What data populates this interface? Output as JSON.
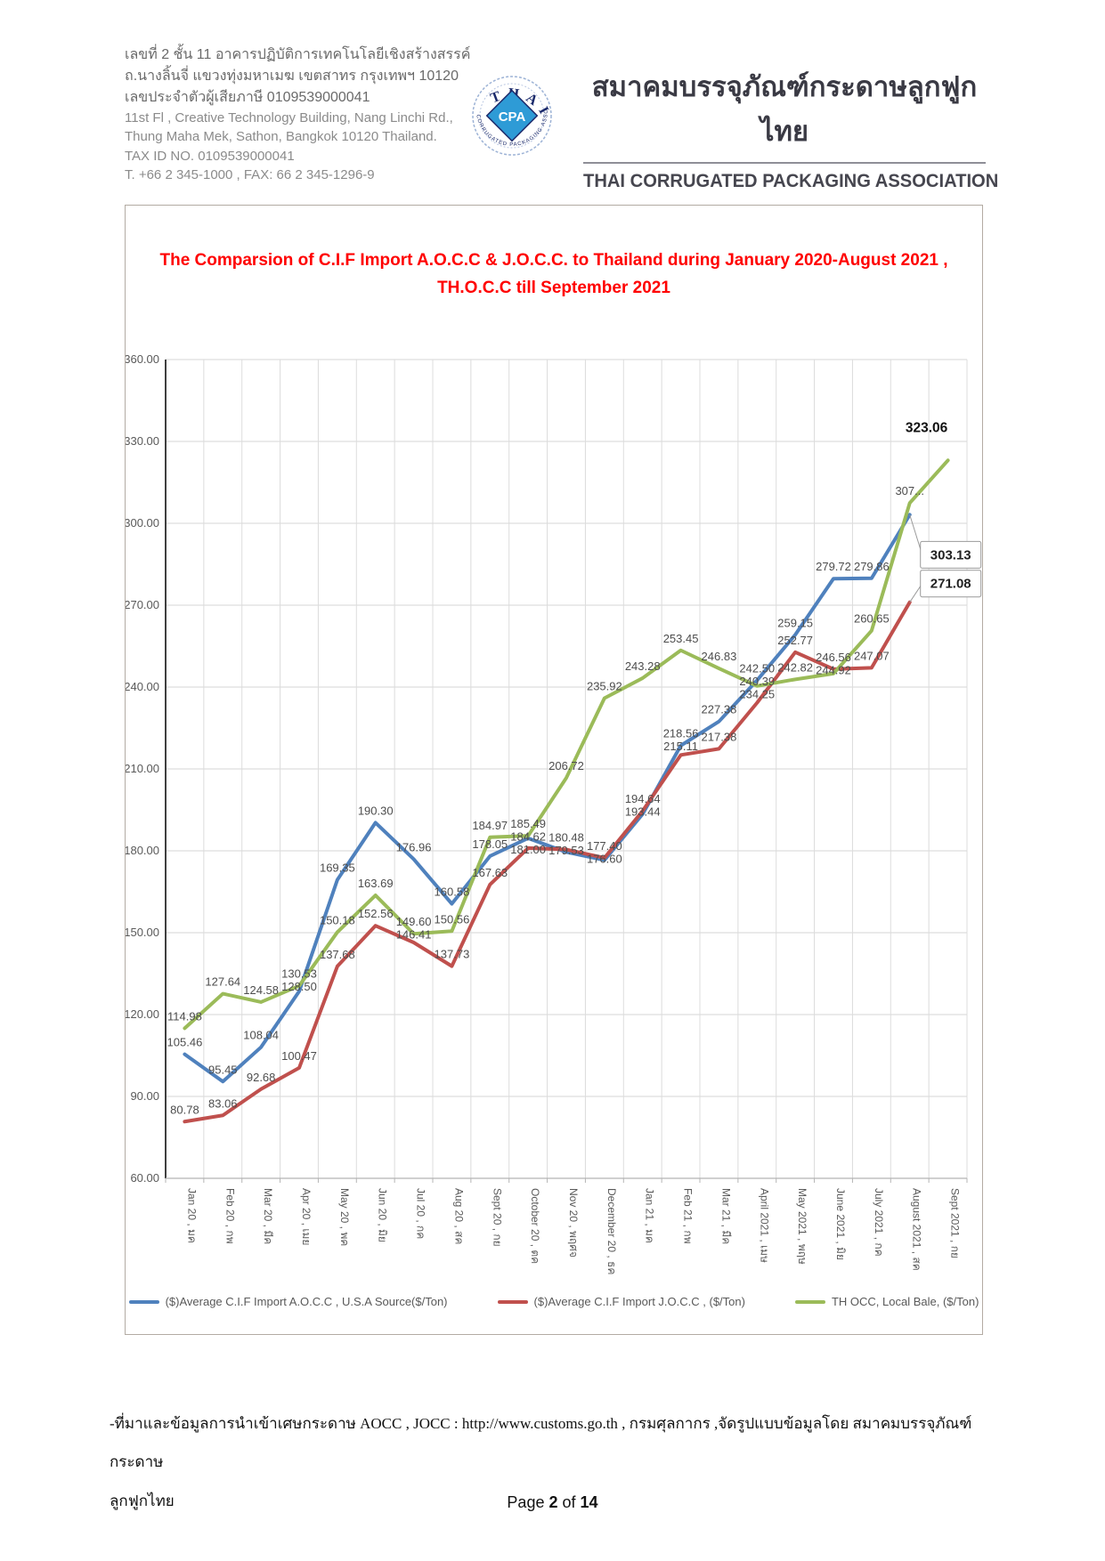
{
  "header": {
    "address_th": [
      "เลขที่ 2 ชั้น 11 อาคารปฏิบัติการเทคโนโลยีเชิงสร้างสรรค์",
      "ถ.นางลิ้นจี่ แขวงทุ่งมหาเมฆ เขตสาทร กรุงเทพฯ 10120",
      "เลขประจำตัวผู้เสียภาษี  0109539000041"
    ],
    "address_en": [
      "11st Fl , Creative Technology Building, Nang Linchi Rd.,",
      "Thung Maha Mek, Sathon, Bangkok 10120 Thailand.",
      "TAX ID NO. 0109539000041",
      "T. +66 2 345-1000 , FAX: 66 2 345-1296-9"
    ],
    "logo": {
      "arc_top": "THAI",
      "arc_bottom": "CORRUGATED PACKAGING ASSOCIATION",
      "center": "CPA"
    },
    "org_name_th": "สมาคมบรรจุภัณฑ์กระดาษลูกฟูกไทย",
    "org_name_en": "THAI CORRUGATED PACKAGING ASSOCIATION"
  },
  "chart": {
    "title_line1": "The Comparsion of C.I.F Import A.O.C.C & J.O.C.C. to Thailand during January 2020-August 2021 ,",
    "title_line2": "TH.O.C.C till September 2021"
  },
  "chart_data": {
    "type": "line",
    "title": "The Comparsion of C.I.F Import A.O.C.C & J.O.C.C. to Thailand during January 2020-August 2021 , TH.O.C.C till September 2021",
    "ylim": [
      60,
      360
    ],
    "ytick_step": 30,
    "grid": true,
    "legend_position": "bottom",
    "categories": [
      "Jan 20 , มค",
      "Feb 20 , กพ",
      "Mar 20 , มีค",
      "Apr 20 , เมย",
      "May 20 , พค",
      "Jun 20 , มิย",
      "Jul 20 , กค",
      "Aug 20 , สค",
      "Sept 20 , กย",
      "October 20 , ตค",
      "Nov 20 , พฤศจ",
      "December 20 , ธค",
      "Jan 21 , มค",
      "Feb 21 , กพ",
      "Mar 21 , มีค",
      "April 2021 , เมษ",
      "May 2021 , พฤษ",
      "June 2021 , มิย",
      "July 2021 , กค",
      "August 2021 , สค",
      "Sept 2021 , กย"
    ],
    "series": [
      {
        "name": "($)Average C.I.F Import A.O.C.C , U.S.A Source($/Ton)",
        "color": "#4f81bd",
        "values": [
          105.46,
          95.45,
          108.04,
          128.5,
          169.35,
          190.3,
          176.96,
          160.58,
          178.05,
          184.62,
          179.53,
          176.6,
          193.44,
          218.56,
          227.38,
          242.5,
          259.15,
          279.72,
          279.86,
          303.13,
          null
        ],
        "labels": [
          "105.46",
          "95.45",
          "108.04",
          "128.50",
          "169.35",
          "190.30",
          "176.96",
          "160.58",
          "178.05",
          "184.62",
          "179.53",
          "176.60",
          "193.44",
          "218.56",
          "227.38",
          "242.50",
          "259.15",
          "279.72",
          "279.86",
          "303.13",
          ""
        ],
        "callout_index": 19
      },
      {
        "name": "($)Average C.I.F Import J.O.C.C , ($/Ton)",
        "color": "#c0504d",
        "values": [
          80.78,
          83.06,
          92.68,
          100.47,
          137.68,
          152.56,
          146.41,
          137.73,
          167.63,
          181.0,
          180.48,
          177.4,
          194.64,
          215.11,
          217.38,
          234.25,
          252.77,
          246.56,
          247.07,
          271.08,
          null
        ],
        "labels": [
          "80.78",
          "83.06",
          "92.68",
          "100.47",
          "137.68",
          "152.56",
          "146.41",
          "137.73",
          "167.63",
          "181.00",
          "180.48",
          "177.40",
          "194.64",
          "215.11",
          "217.38",
          "234.25",
          "252.77",
          "246.56",
          "247.07",
          "271.08",
          ""
        ],
        "callout_index": 19
      },
      {
        "name": "TH OCC, Local Bale, ($/Ton)",
        "color": "#9bbb59",
        "values": [
          114.98,
          127.64,
          124.58,
          130.53,
          150.18,
          163.69,
          149.6,
          150.56,
          184.97,
          185.49,
          206.72,
          235.92,
          243.28,
          253.45,
          246.83,
          240.39,
          242.82,
          244.92,
          260.65,
          307.44,
          323.06
        ],
        "labels": [
          "114.98",
          "127.64",
          "124.58",
          "130.53",
          "150.18",
          "163.69",
          "149.60",
          "150.56",
          "184.97",
          "185.49",
          "206.72",
          "235.92",
          "243.28",
          "253.45",
          "246.83",
          "240.39",
          "242.82",
          "244.92",
          "260.65",
          "307...",
          "323.06"
        ],
        "emphasis_index": 20
      }
    ]
  },
  "footer": {
    "source_line1": "-ที่มาและข้อมูลการนำเข้าเศษกระดาษ AOCC , JOCC  : http://www.customs.go.th ,  กรมศุลกากร ,จัดรูปแบบข้อมูลโดย สมาคมบรรจุภัณฑ์กระดาษ",
    "source_line2": "ลูกฟูกไทย",
    "page_prefix": "Page",
    "page_number": "2",
    "page_middle": "of",
    "page_total": "14"
  }
}
